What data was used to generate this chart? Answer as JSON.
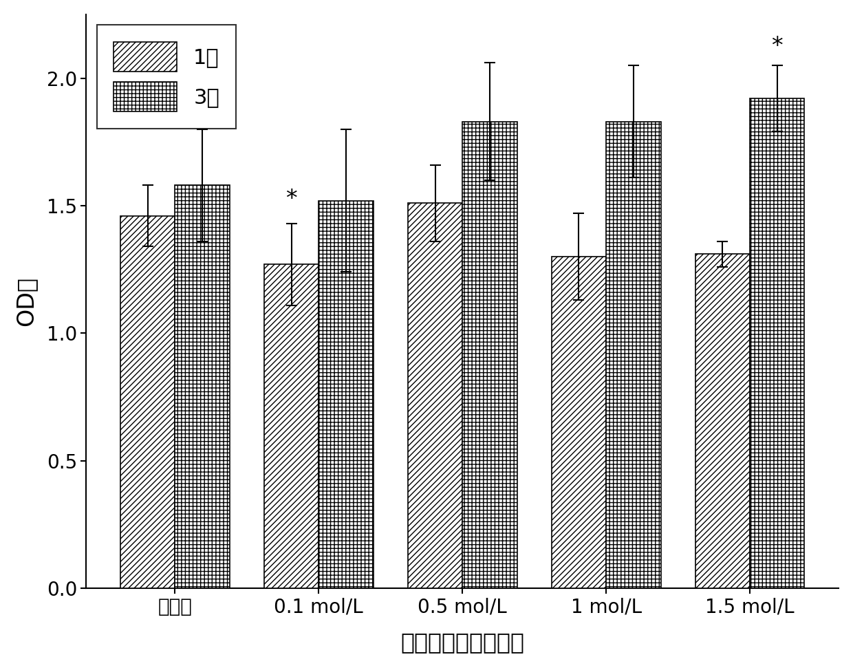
{
  "categories": [
    "对照组",
    "0.1 mol/L",
    "0.5 mol/L",
    "1 mol/L",
    "1.5 mol/L"
  ],
  "day1_values": [
    1.46,
    1.27,
    1.51,
    1.3,
    1.31
  ],
  "day3_values": [
    1.58,
    1.52,
    1.83,
    1.83,
    1.92
  ],
  "day1_errors": [
    0.12,
    0.16,
    0.15,
    0.17,
    0.05
  ],
  "day3_errors": [
    0.22,
    0.28,
    0.23,
    0.22,
    0.13
  ],
  "star_day1_idx": 1,
  "star_day3_idx": 4,
  "ylabel": "OD值",
  "xlabel": "碳二亚胺盐酸盐浓度",
  "legend_day1": "1天",
  "legend_day3": "3天",
  "ylim": [
    0.0,
    2.25
  ],
  "yticks": [
    0.0,
    0.5,
    1.0,
    1.5,
    2.0
  ],
  "bar_width": 0.38,
  "background_color": "#ffffff",
  "bar_edgecolor": "#000000",
  "hatch_day1": "////",
  "hatch_day3": "+++"
}
